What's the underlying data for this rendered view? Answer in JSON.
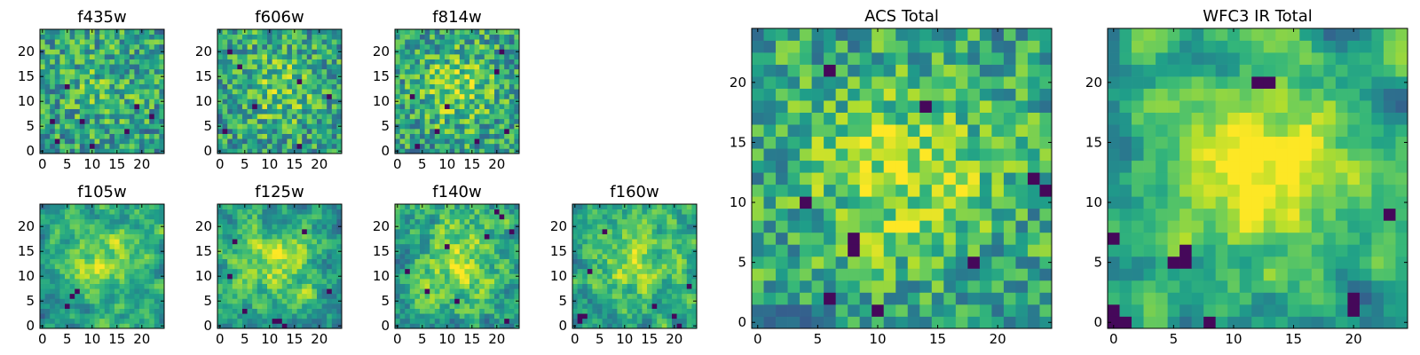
{
  "chart_data": [
    {
      "id": "f435w",
      "type": "heatmap",
      "title": "f435w",
      "size": [
        25,
        25
      ],
      "colormap": "viridis",
      "seed": 11,
      "smoothing": 0.05,
      "center_strength": 0.12,
      "dark_spots": [
        [
          5,
          13
        ],
        [
          8,
          6
        ],
        [
          17,
          4
        ],
        [
          19,
          9
        ],
        [
          3,
          2
        ],
        [
          10,
          1
        ],
        [
          22,
          7
        ],
        [
          2,
          6
        ]
      ],
      "xlim": [
        0,
        24
      ],
      "ylim": [
        0,
        24
      ],
      "xticks": [
        0,
        5,
        10,
        15,
        20
      ],
      "yticks": [
        0,
        5,
        10,
        15,
        20
      ]
    },
    {
      "id": "f606w",
      "type": "heatmap",
      "title": "f606w",
      "size": [
        25,
        25
      ],
      "colormap": "viridis",
      "seed": 23,
      "smoothing": 0.08,
      "center_strength": 0.2,
      "dark_spots": [
        [
          4,
          17
        ],
        [
          16,
          14
        ],
        [
          7,
          9
        ],
        [
          2,
          20
        ],
        [
          1,
          4
        ],
        [
          16,
          1
        ],
        [
          22,
          11
        ]
      ],
      "xlim": [
        0,
        24
      ],
      "ylim": [
        0,
        24
      ],
      "xticks": [
        0,
        5,
        10,
        15,
        20
      ],
      "yticks": [
        0,
        5,
        10,
        15,
        20
      ]
    },
    {
      "id": "f814w",
      "type": "heatmap",
      "title": "f814w",
      "size": [
        25,
        25
      ],
      "colormap": "viridis",
      "seed": 37,
      "smoothing": 0.1,
      "center_strength": 0.25,
      "dark_spots": [
        [
          3,
          11
        ],
        [
          10,
          9
        ],
        [
          8,
          4
        ],
        [
          16,
          2
        ],
        [
          20,
          16
        ],
        [
          22,
          4
        ],
        [
          21,
          20
        ],
        [
          4,
          1
        ]
      ],
      "xlim": [
        0,
        24
      ],
      "ylim": [
        0,
        24
      ],
      "xticks": [
        0,
        5,
        10,
        15,
        20
      ],
      "yticks": [
        0,
        5,
        10,
        15,
        20
      ]
    },
    {
      "id": "f105w",
      "type": "heatmap",
      "title": "f105w",
      "size": [
        25,
        25
      ],
      "colormap": "viridis",
      "seed": 41,
      "smoothing": 0.55,
      "center_strength": 0.35,
      "dark_spots": [
        [
          6,
          6
        ],
        [
          5,
          4
        ],
        [
          7,
          7
        ]
      ],
      "xlim": [
        0,
        24
      ],
      "ylim": [
        0,
        24
      ],
      "xticks": [
        0,
        5,
        10,
        15,
        20
      ],
      "yticks": [
        0,
        5,
        10,
        15,
        20
      ]
    },
    {
      "id": "f125w",
      "type": "heatmap",
      "title": "f125w",
      "size": [
        25,
        25
      ],
      "colormap": "viridis",
      "seed": 53,
      "smoothing": 0.45,
      "center_strength": 0.3,
      "dark_spots": [
        [
          11,
          1
        ],
        [
          12,
          1
        ],
        [
          3,
          17
        ],
        [
          2,
          10
        ],
        [
          17,
          19
        ],
        [
          22,
          7
        ],
        [
          5,
          3
        ],
        [
          13,
          0
        ]
      ],
      "xlim": [
        0,
        24
      ],
      "ylim": [
        0,
        24
      ],
      "xticks": [
        0,
        5,
        10,
        15,
        20
      ],
      "yticks": [
        0,
        5,
        10,
        15,
        20
      ]
    },
    {
      "id": "f140w",
      "type": "heatmap",
      "title": "f140w",
      "size": [
        25,
        25
      ],
      "colormap": "viridis",
      "seed": 67,
      "smoothing": 0.45,
      "center_strength": 0.3,
      "dark_spots": [
        [
          20,
          23
        ],
        [
          21,
          22
        ],
        [
          23,
          19
        ],
        [
          18,
          18
        ],
        [
          10,
          16
        ],
        [
          6,
          7
        ],
        [
          12,
          5
        ],
        [
          2,
          11
        ],
        [
          22,
          1
        ]
      ],
      "xlim": [
        0,
        24
      ],
      "ylim": [
        0,
        24
      ],
      "xticks": [
        0,
        5,
        10,
        15,
        20
      ],
      "yticks": [
        0,
        5,
        10,
        15,
        20
      ]
    },
    {
      "id": "f160w",
      "type": "heatmap",
      "title": "f160w",
      "size": [
        25,
        25
      ],
      "colormap": "viridis",
      "seed": 79,
      "smoothing": 0.45,
      "center_strength": 0.3,
      "dark_spots": [
        [
          1,
          2
        ],
        [
          1,
          1
        ],
        [
          2,
          2
        ],
        [
          3,
          11
        ],
        [
          16,
          4
        ],
        [
          21,
          0
        ],
        [
          20,
          2
        ],
        [
          23,
          8
        ],
        [
          6,
          19
        ]
      ],
      "xlim": [
        0,
        24
      ],
      "ylim": [
        0,
        24
      ],
      "xticks": [
        0,
        5,
        10,
        15,
        20
      ],
      "yticks": [
        0,
        5,
        10,
        15,
        20
      ]
    },
    {
      "id": "acs-total",
      "type": "heatmap",
      "title": "ACS Total",
      "size": [
        25,
        25
      ],
      "colormap": "viridis",
      "seed": 97,
      "smoothing": 0.25,
      "center_strength": 0.3,
      "dark_spots": [
        [
          6,
          21
        ],
        [
          14,
          18
        ],
        [
          23,
          12
        ],
        [
          24,
          11
        ],
        [
          8,
          7
        ],
        [
          8,
          6
        ],
        [
          6,
          2
        ],
        [
          10,
          1
        ],
        [
          4,
          10
        ],
        [
          18,
          5
        ]
      ],
      "xlim": [
        0,
        24
      ],
      "ylim": [
        0,
        24
      ],
      "xticks": [
        0,
        5,
        10,
        15,
        20
      ],
      "yticks": [
        0,
        5,
        10,
        15,
        20
      ]
    },
    {
      "id": "wfc3-ir-total",
      "type": "heatmap",
      "title": "WFC3 IR Total",
      "size": [
        25,
        25
      ],
      "colormap": "viridis",
      "seed": 113,
      "smoothing": 0.6,
      "center_strength": 0.45,
      "dark_spots": [
        [
          6,
          5
        ],
        [
          6,
          6
        ],
        [
          5,
          5
        ],
        [
          0,
          0
        ],
        [
          1,
          0
        ],
        [
          0,
          1
        ],
        [
          8,
          0
        ],
        [
          20,
          1
        ],
        [
          20,
          2
        ],
        [
          23,
          9
        ],
        [
          0,
          7
        ],
        [
          12,
          20
        ],
        [
          13,
          20
        ]
      ],
      "xlim": [
        0,
        24
      ],
      "ylim": [
        0,
        24
      ],
      "xticks": [
        0,
        5,
        10,
        15,
        20
      ],
      "yticks": [
        0,
        5,
        10,
        15,
        20
      ]
    }
  ]
}
